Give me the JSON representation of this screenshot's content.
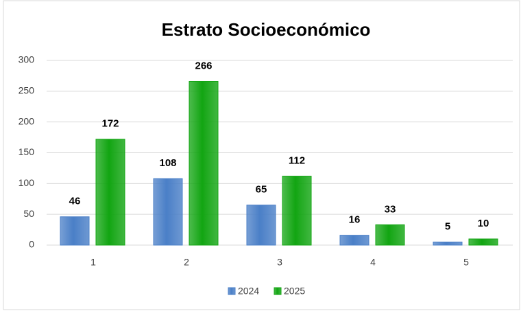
{
  "chart_data": {
    "type": "bar",
    "title": "Estrato Socioeconómico",
    "categories": [
      "1",
      "2",
      "3",
      "4",
      "5"
    ],
    "series": [
      {
        "name": "2024",
        "color": "#4a7fc7",
        "values": [
          46,
          108,
          65,
          16,
          5
        ]
      },
      {
        "name": "2025",
        "color": "#12a512",
        "values": [
          172,
          266,
          112,
          33,
          10
        ]
      }
    ],
    "ylim": [
      0,
      300
    ],
    "yticks": [
      0,
      50,
      100,
      150,
      200,
      250,
      300
    ],
    "grid": true,
    "legend": "bottom"
  }
}
